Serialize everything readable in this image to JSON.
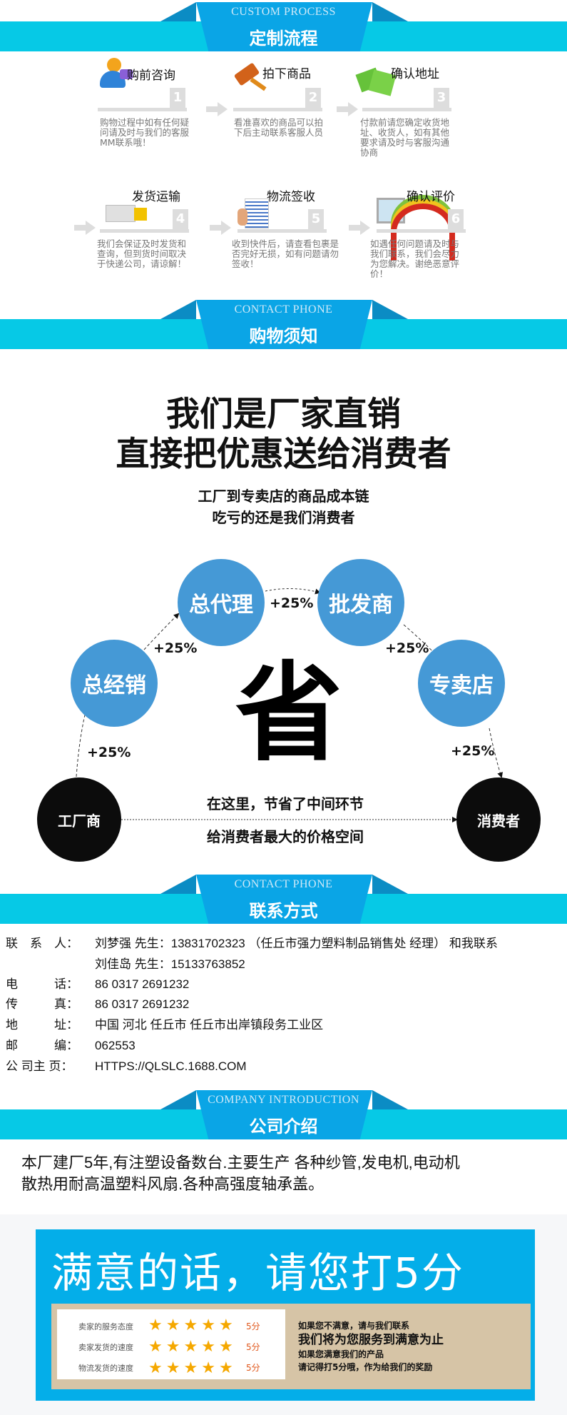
{
  "banners": [
    {
      "en": "CUSTOM PROCESS",
      "cn": "定制流程"
    },
    {
      "en": "CONTACT PHONE",
      "cn": "购物须知"
    },
    {
      "en": "CONTACT PHONE",
      "cn": "联系方式"
    },
    {
      "en": "COMPANY INTRODUCTION",
      "cn": "公司介绍"
    }
  ],
  "process": [
    {
      "title": "购前咨询",
      "num": "1",
      "icon": "customer-service-icon",
      "desc": "购物过程中如有任何疑问请及时与我们的客服MM联系哦！"
    },
    {
      "title": "拍下商品",
      "num": "2",
      "icon": "auction-hammer-icon",
      "desc": "看准喜欢的商品可以拍下后主动联系客服人员"
    },
    {
      "title": "确认地址",
      "num": "3",
      "icon": "money-icon",
      "desc": "付款前请您确定收货地址、收货人，如有其他要求请及时与客服沟通协商"
    },
    {
      "title": "发货运输",
      "num": "4",
      "icon": "delivery-truck-icon",
      "desc": "我们会保证及时发货和查询，但到货时间取决于快递公司，请谅解！"
    },
    {
      "title": "物流签收",
      "num": "5",
      "icon": "sign-document-icon",
      "desc": "收到快件后，请查看包裹是否完好无损，如有问题请勿签收！"
    },
    {
      "title": "确认评价",
      "num": "6",
      "icon": "monitor-rainbow-icon",
      "desc": "如遇任何问题请及时与我们联系，我们会尽力为您解决。谢绝恶意评价！"
    }
  ],
  "promo": {
    "headline1": "我们是厂家直销",
    "headline2": "直接把优惠送给消费者",
    "sub1": "工厂到专卖店的商品成本链",
    "sub2": "吃亏的还是我们消费者",
    "nodes": {
      "factory": "工厂商",
      "general": "总经销",
      "agent": "总代理",
      "wholesale": "批发商",
      "store": "专卖店",
      "consumer": "消费者"
    },
    "markup": "+25%",
    "save_char": "省",
    "save1": "在这里，节省了中间环节",
    "save2": "给消费者最大的价格空间"
  },
  "contact": {
    "rows": [
      {
        "label": "联　系　人：",
        "value": "刘梦强 先生：13831702323 （任丘市强力塑料制品销售处 经理） 和我联系"
      },
      {
        "label": "",
        "value": "刘佳岛 先生：15133763852"
      },
      {
        "label": "电　　　话：",
        "value": "86 0317 2691232"
      },
      {
        "label": "传　　　真：",
        "value": "86 0317 2691232"
      },
      {
        "label": "地　　　址：",
        "value": "中国 河北 任丘市 任丘市出岸镇段务工业区"
      },
      {
        "label": "邮　　　编：",
        "value": "062553"
      },
      {
        "label": "公 司主 页：",
        "value": "HTTPS://QLSLC.1688.COM"
      }
    ]
  },
  "intro": {
    "line1": "本厂建厂5年,有注塑设备数台.主要生产 各种纱管,发电机,电动机",
    "line2": "散热用耐高温塑料风扇.各种高强度轴承盖。"
  },
  "rating": {
    "title": "满意的话，请您打5分",
    "rows": [
      {
        "label": "卖家的服务态度",
        "stars": 5,
        "score": "5分"
      },
      {
        "label": "卖家发货的速度",
        "stars": 5,
        "score": "5分"
      },
      {
        "label": "物流发货的速度",
        "stars": 5,
        "score": "5分"
      }
    ],
    "msg1": "如果您不满意，请与我们联系",
    "msg2": "我们将为您服务到满意为止",
    "msg3": "如果您满意我们的产品",
    "msg4": "请记得打5分哦，作为给我们的奖励"
  },
  "colors": {
    "cyan": "#06c9e6",
    "banner_blue": "#0aa5e6",
    "circle_blue": "#4599d6",
    "rating_blue": "#04aee9",
    "beige": "#d6c4a6"
  }
}
